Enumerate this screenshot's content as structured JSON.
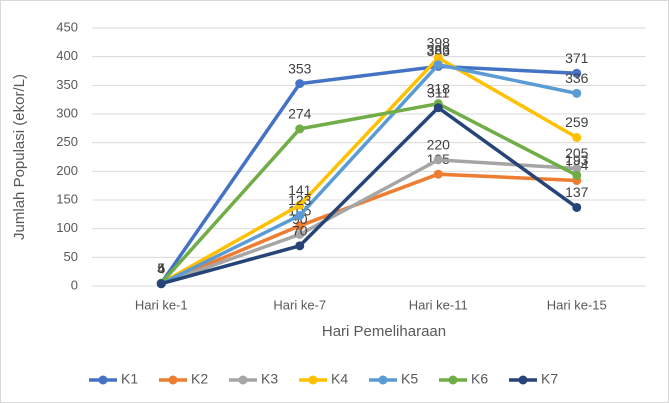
{
  "chart_data": {
    "type": "line",
    "x_label": "Hari Pemeliharaan",
    "y_label": "Jumlah Populasi (ekor/L)",
    "categories": [
      "Hari ke-1",
      "Hari ke-7",
      "Hari ke-11",
      "Hari ke-15"
    ],
    "series": [
      {
        "name": "K1",
        "color": "#4472c4",
        "values": [
          5,
          353,
          383,
          371
        ]
      },
      {
        "name": "K2",
        "color": "#ed7d31",
        "values": [
          4,
          105,
          195,
          184
        ]
      },
      {
        "name": "K3",
        "color": "#a5a5a5",
        "values": [
          4,
          90,
          220,
          205
        ]
      },
      {
        "name": "K4",
        "color": "#ffc000",
        "values": [
          5,
          141,
          398,
          259
        ]
      },
      {
        "name": "K5",
        "color": "#5b9bd5",
        "values": [
          4,
          123,
          386,
          336
        ]
      },
      {
        "name": "K6",
        "color": "#70ad47",
        "values": [
          5,
          274,
          318,
          193
        ]
      },
      {
        "name": "K7",
        "color": "#264478",
        "values": [
          4,
          70,
          311,
          137
        ]
      }
    ],
    "ylim": [
      0,
      450
    ],
    "yticks": [
      0,
      50,
      100,
      150,
      200,
      250,
      300,
      350,
      400,
      450
    ],
    "grid": true,
    "legend": "bottom"
  }
}
